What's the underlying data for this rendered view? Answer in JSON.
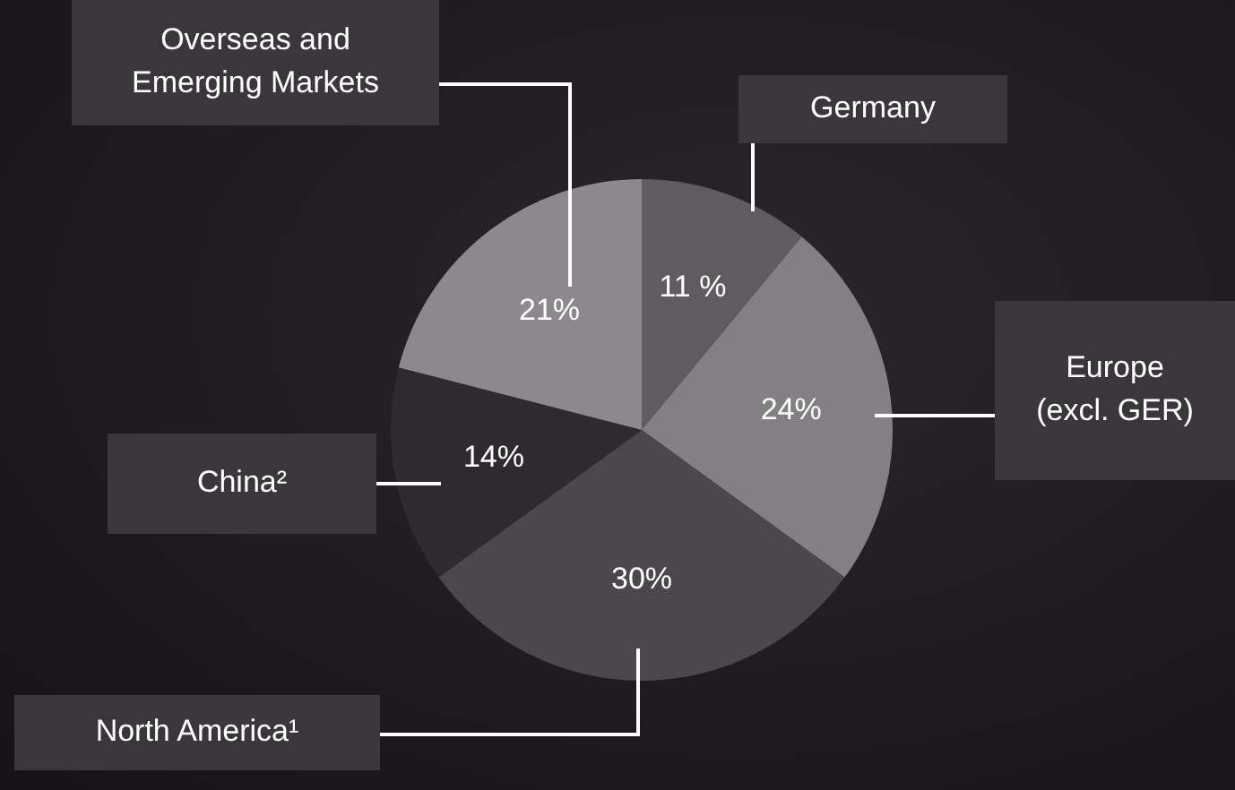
{
  "chart_data": {
    "type": "pie",
    "categories": [
      "Germany",
      "Europe\n(excl. GER)",
      "North America¹",
      "China²",
      "Overseas and\nEmerging Markets"
    ],
    "values": [
      11,
      24,
      30,
      14,
      21
    ],
    "value_labels": [
      "11 %",
      "24%",
      "30%",
      "14%",
      "21%"
    ],
    "colors": [
      "#5f5c5f",
      "#828082",
      "#4b484b",
      "#2e2b2e",
      "#8c898c"
    ],
    "legend": false
  }
}
